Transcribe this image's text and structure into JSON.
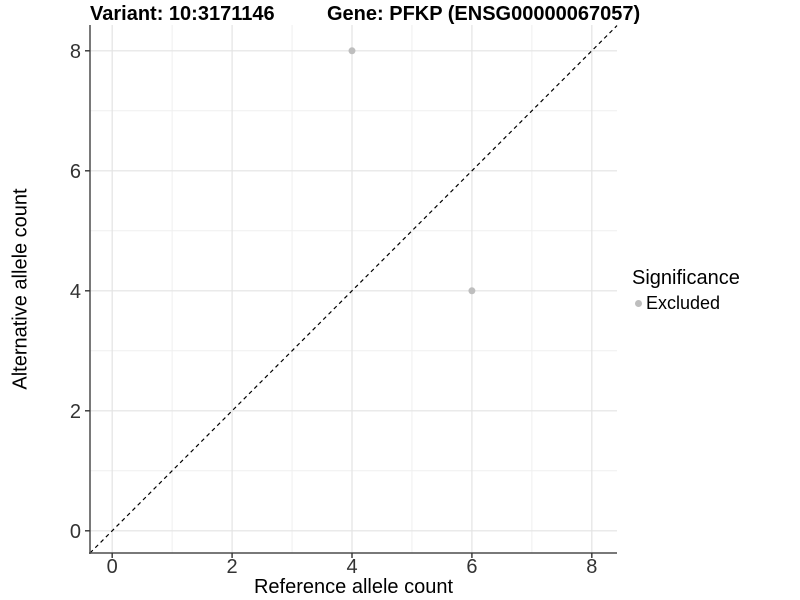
{
  "titles": {
    "variant": "Variant: 10:3171146",
    "gene": "Gene: PFKP (ENSG00000067057)"
  },
  "chart_data": {
    "type": "scatter",
    "title_left": "Variant: 10:3171146",
    "title_right": "Gene: PFKP (ENSG00000067057)",
    "xlabel": "Reference allele count",
    "ylabel": "Alternative allele count",
    "xlim": [
      -0.37,
      8.42
    ],
    "ylim": [
      -0.37,
      8.43
    ],
    "x_ticks": [
      0,
      2,
      4,
      6,
      8
    ],
    "y_ticks": [
      0,
      2,
      4,
      6,
      8
    ],
    "x_minor_gridlines": [
      1,
      3,
      5,
      7
    ],
    "y_minor_gridlines": [
      1,
      3,
      5,
      7
    ],
    "grid": true,
    "background": "#ffffff",
    "points": [
      {
        "x": 4,
        "y": 8,
        "series": "Excluded"
      },
      {
        "x": 6,
        "y": 4,
        "series": "Excluded"
      }
    ],
    "point_color": "#bebebe",
    "point_radius": 3.5,
    "identity_line": {
      "style": "dashed",
      "color": "#000000",
      "from": [
        -0.37,
        -0.37
      ],
      "to": [
        8.42,
        8.42
      ]
    },
    "legend": {
      "title": "Significance",
      "position": "right",
      "items": [
        {
          "label": "Excluded",
          "color": "#bebebe"
        }
      ]
    },
    "colors": {
      "axis_line": "#4d4d4d",
      "tick_mark": "#333333",
      "tick_label": "#333333",
      "grid_major": "#e3e3e3",
      "grid_minor": "#efefef"
    }
  }
}
